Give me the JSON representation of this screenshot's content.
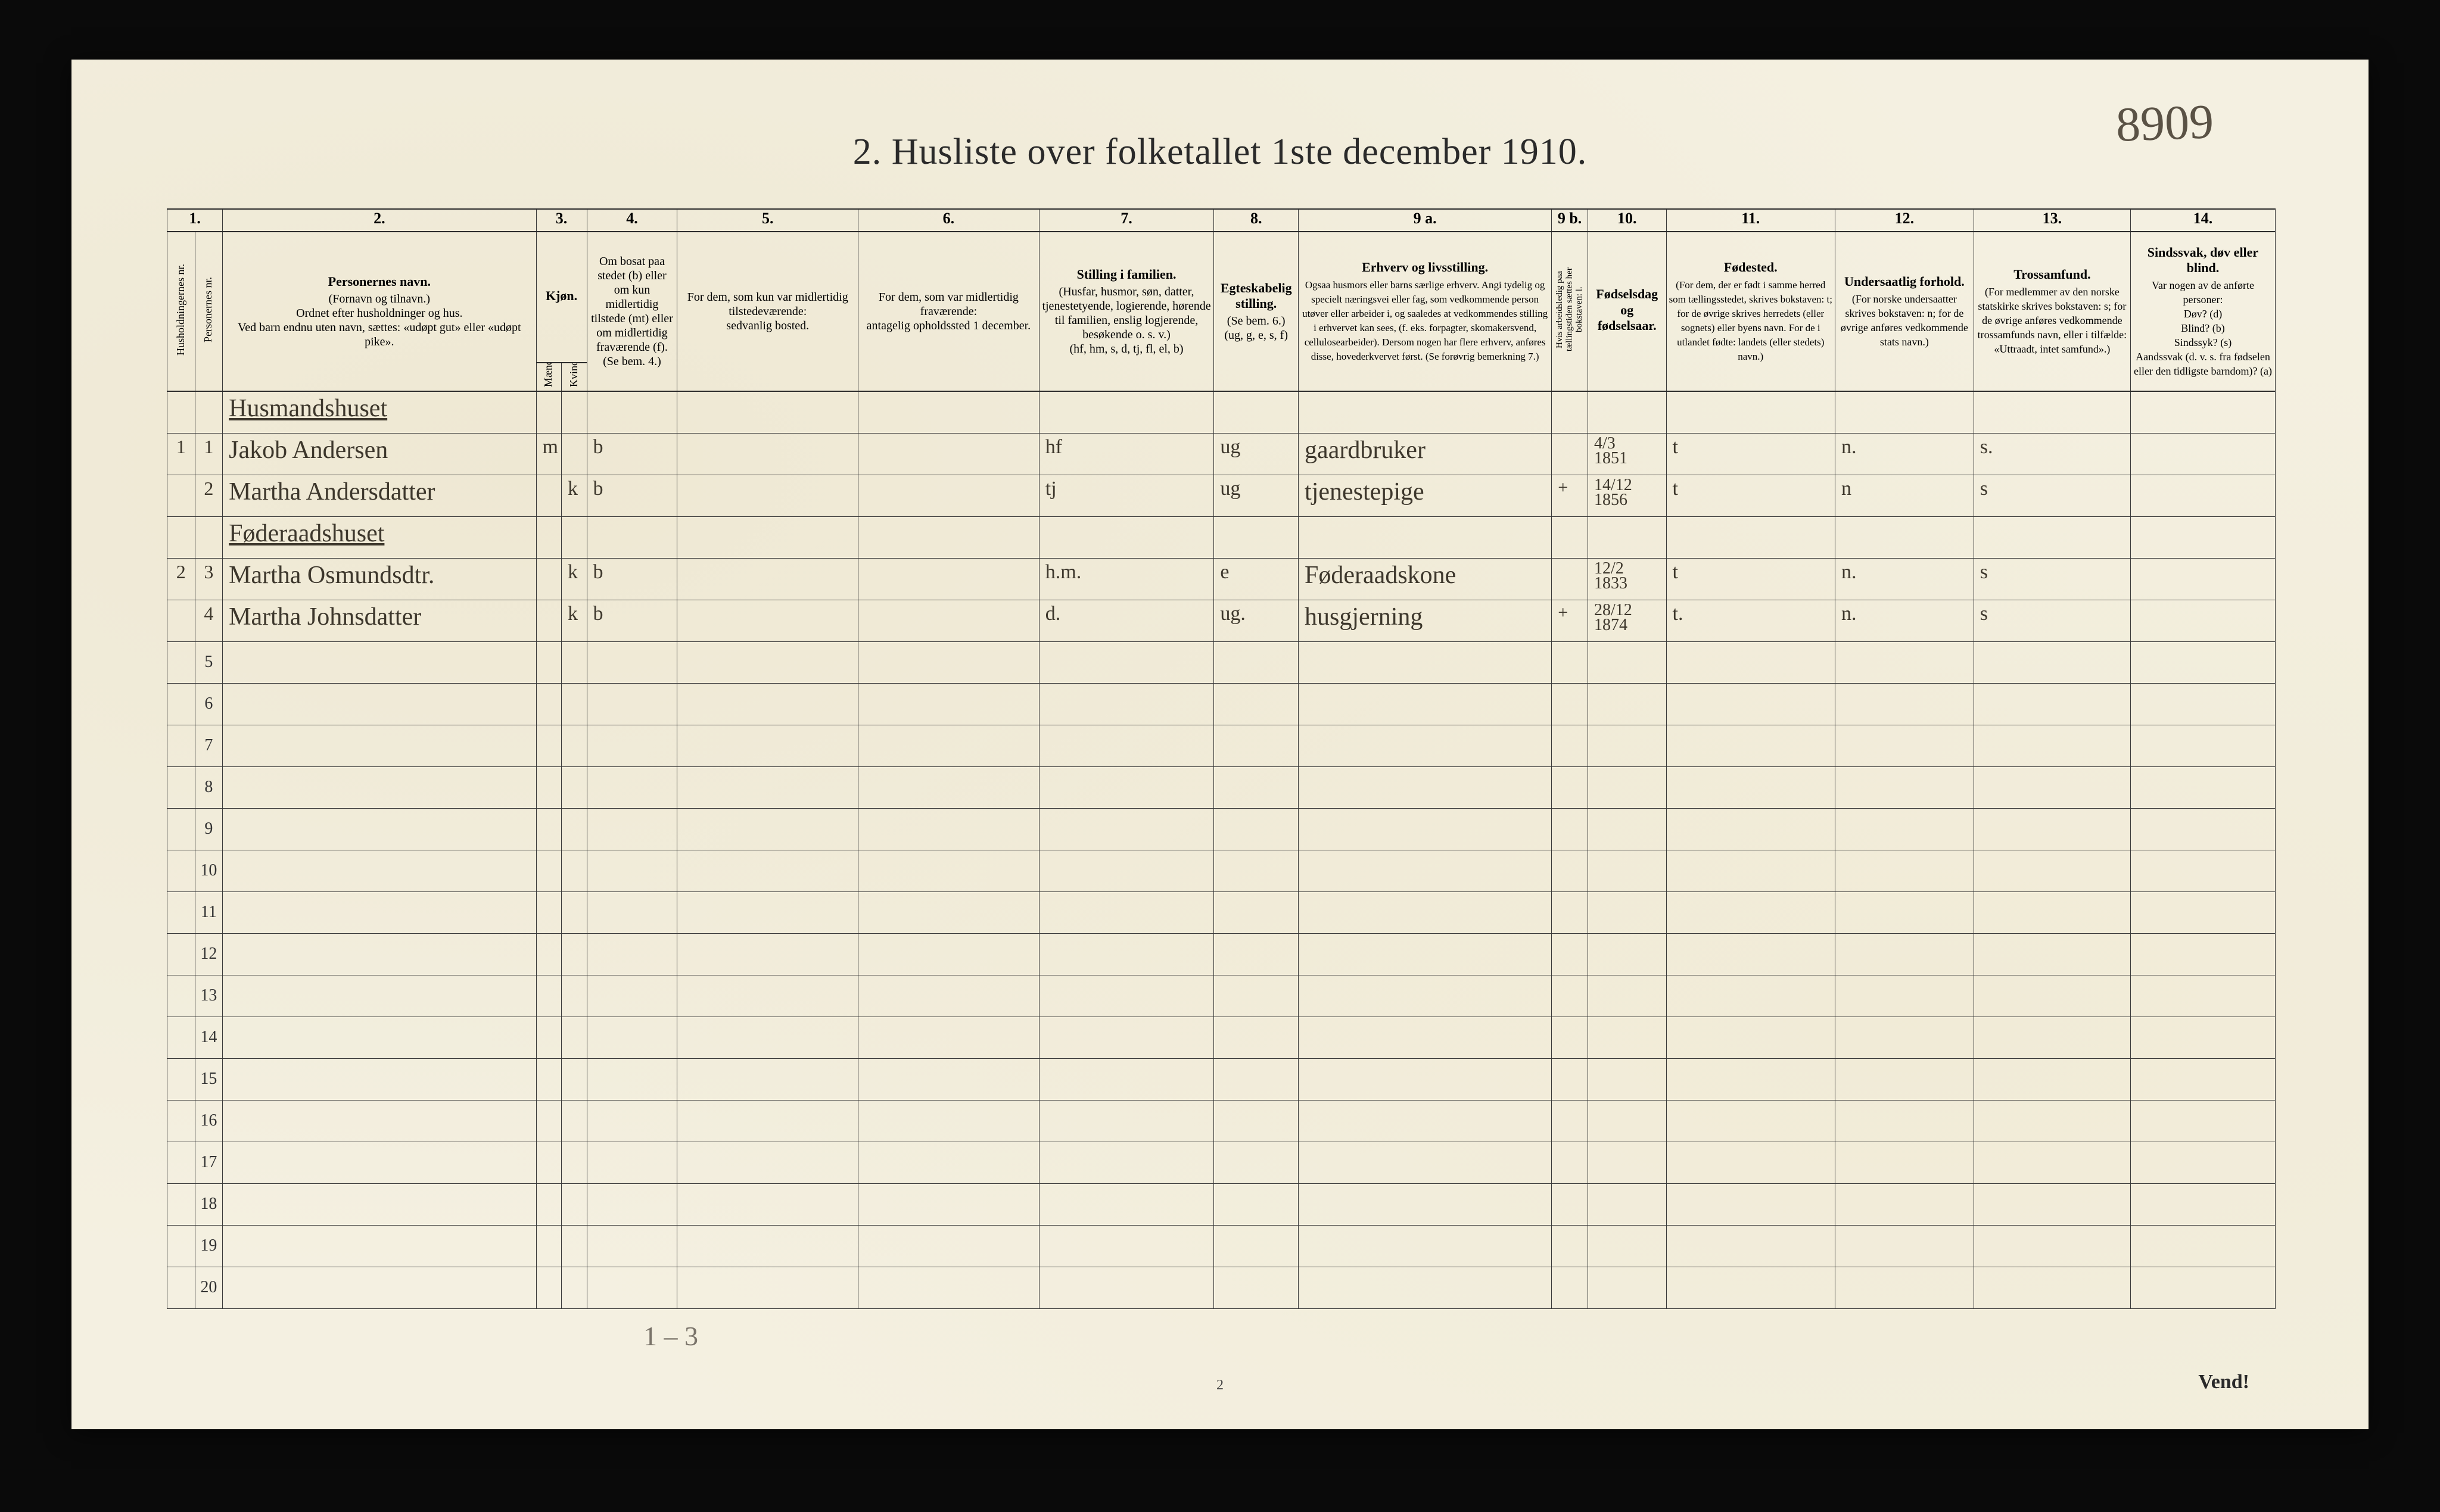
{
  "page_number_handwritten": "8909",
  "title": "2.  Husliste over folketallet 1ste december 1910.",
  "footer_page": "2",
  "vend": "Vend!",
  "pencil_note": "1 – 3",
  "colnums": [
    "1.",
    "",
    "2.",
    "3.",
    "",
    "4.",
    "5.",
    "6.",
    "7.",
    "8.",
    "9 a.",
    "9 b.",
    "10.",
    "11.",
    "12.",
    "13.",
    "14."
  ],
  "headers": {
    "h1": "Husholdningernes nr.",
    "h2": "Personernes nr.",
    "name_title": "Personernes navn.",
    "name_sub": "(Fornavn og tilnavn.)\nOrdnet efter husholdninger og hus.\nVed barn endnu uten navn, sættes: «udøpt gut» eller «udøpt pike».",
    "sex_title": "Kjøn.",
    "sex_sub1": "Mænd.",
    "sex_sub2": "Kvinder.",
    "bosat": "Om bosat paa stedet (b) eller om kun midlertidig tilstede (mt) eller om midlertidig fraværende (f). (Se bem. 4.)",
    "midt": "For dem, som kun var midlertidig tilstedeværende:\nsedvanlig bosted.",
    "frav": "For dem, som var midlertidig fraværende:\nantagelig opholdssted 1 december.",
    "still_title": "Stilling i familien.",
    "still_sub": "(Husfar, husmor, søn, datter, tjenestetyende, logierende, hørende til familien, enslig logjerende, besøkende o. s. v.)\n(hf, hm, s, d, tj, fl, el, b)",
    "egte_title": "Egteskabelig stilling.",
    "egte_sub": "(Se bem. 6.)\n(ug, g, e, s, f)",
    "erhv_title": "Erhverv og livsstilling.",
    "erhv_sub": "Ogsaa husmors eller barns særlige erhverv. Angi tydelig og specielt næringsvei eller fag, som vedkommende person utøver eller arbeider i, og saaledes at vedkommendes stilling i erhvervet kan sees, (f. eks. forpagter, skomakersvend, cellulosearbeider). Dersom nogen har flere erhverv, anføres disse, hovederkvervet først. (Se forøvrig bemerkning 7.)",
    "col9b": "Hvis arbeidsledig paa tællingstiden sættes her bokstaven: l.",
    "fods_title": "Fødselsdag og fødselsaar.",
    "fodested_title": "Fødested.",
    "fodested_sub": "(For dem, der er født i samme herred som tællingsstedet, skrives bokstaven: t; for de øvrige skrives herredets (eller sognets) eller byens navn. For de i utlandet fødte: landets (eller stedets) navn.)",
    "under_title": "Undersaatlig forhold.",
    "under_sub": "(For norske undersaatter skrives bokstaven: n; for de øvrige anføres vedkommende stats navn.)",
    "tros_title": "Trossamfund.",
    "tros_sub": "(For medlemmer av den norske statskirke skrives bokstaven: s; for de øvrige anføres vedkommende trossamfunds navn, eller i tilfælde: «Uttraadt, intet samfund».)",
    "sind_title": "Sindssvak, døv eller blind.",
    "sind_sub": "Var nogen av de anførte personer:\nDøv? (d)\nBlind? (b)\nSindssyk? (s)\nAandssvak (d. v. s. fra fødselen eller den tidligste barndom)? (a)"
  },
  "section_label": "Husmandshuset",
  "rows": [
    {
      "hnr": "1",
      "pnr": "1",
      "name": "Jakob Andersen",
      "sex_m": "m",
      "sex_k": "",
      "bosat": "b",
      "midt": "",
      "frav": "",
      "still": "hf",
      "egte": "ug",
      "erhv": "gaardbruker",
      "col9b": "",
      "fods": "4/3\n1851",
      "fodested": "t",
      "under": "n.",
      "tros": "s.",
      "sind": ""
    },
    {
      "hnr": "",
      "pnr": "2",
      "name": "Martha Andersdatter",
      "sex_m": "",
      "sex_k": "k",
      "bosat": "b",
      "midt": "",
      "frav": "",
      "still": "tj",
      "egte": "ug",
      "erhv": "tjenestepige",
      "col9b": "+",
      "fods": "14/12\n1856",
      "fodested": "t",
      "under": "n",
      "tros": "s",
      "sind": ""
    },
    {
      "hnr": "2",
      "pnr": "3",
      "name": "Martha Osmundsdtr.",
      "sex_m": "",
      "sex_k": "k",
      "bosat": "b",
      "midt": "",
      "frav": "",
      "still": "h.m.",
      "egte": "e",
      "erhv": "Føderaadskone",
      "col9b": "",
      "fods": "12/2\n1833",
      "fodested": "t",
      "under": "n.",
      "tros": "s",
      "sind": ""
    },
    {
      "hnr": "",
      "pnr": "4",
      "name": "Martha Johnsdatter",
      "sex_m": "",
      "sex_k": "k",
      "bosat": "b",
      "midt": "",
      "frav": "",
      "still": "d.",
      "egte": "ug.",
      "erhv": "husgjerning",
      "col9b": "+",
      "fods": "28/12\n1874",
      "fodested": "t.",
      "under": "n.",
      "tros": "s",
      "sind": ""
    }
  ],
  "empty_row_start": 5,
  "empty_row_end": 20,
  "section2_label": "Føderaadshuset"
}
